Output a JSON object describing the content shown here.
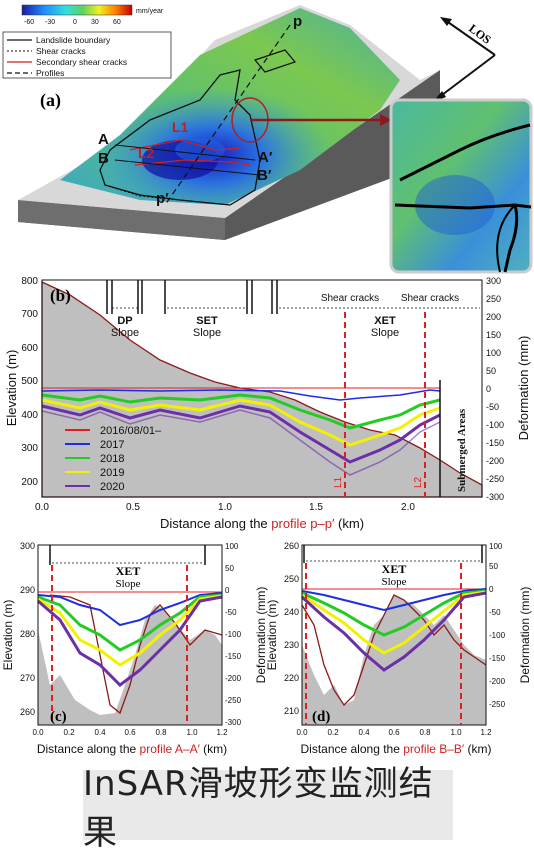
{
  "panel_a": {
    "label": "(a)",
    "colorbar": {
      "ticks": [
        "-60",
        "-30",
        "0",
        "30",
        "60"
      ],
      "unit": "mm/year"
    },
    "legend": [
      {
        "label": "Landslide boundary",
        "style": "solid-black"
      },
      {
        "label": "Shear cracks",
        "style": "dotted-black"
      },
      {
        "label": "Secondary shear cracks",
        "style": "solid-red"
      },
      {
        "label": "Profiles",
        "style": "dashed-black"
      }
    ],
    "profile_labels": [
      "p",
      "A",
      "B",
      "A′",
      "B′",
      "p′"
    ],
    "crack_labels": [
      "L1",
      "L2"
    ],
    "los_label": "LOS"
  },
  "panel_b": {
    "label": "(b)",
    "ylabel_left": "Elevation (m)",
    "ylabel_right": "Deformation (mm)",
    "xlabel_prefix": "Distance along the ",
    "xlabel_profile": "profile p–p′",
    "xlabel_suffix": " (km)",
    "left_ticks": [
      "800",
      "700",
      "600",
      "500",
      "400",
      "300",
      "200"
    ],
    "right_ticks": [
      "300",
      "250",
      "200",
      "150",
      "100",
      "50",
      "0",
      "-50",
      "-100",
      "-150",
      "-200",
      "-250",
      "-300"
    ],
    "x_ticks": [
      "0.0",
      "0.5",
      "1.0",
      "1.5",
      "2.0"
    ],
    "zones": [
      {
        "name": "DP",
        "sub": "Slope"
      },
      {
        "name": "SET",
        "sub": "Slope"
      },
      {
        "name": "XET",
        "sub": "Slope"
      }
    ],
    "shear_labels": [
      "Shear cracks",
      "Shear cracks"
    ],
    "line_labels": [
      "L1",
      "L2"
    ],
    "submerged": "Submerged Areas",
    "legend": [
      {
        "label": "2016/08/01–",
        "color": "#e02020"
      },
      {
        "label": "2017",
        "color": "#1a2ee6"
      },
      {
        "label": "2018",
        "color": "#22cc22"
      },
      {
        "label": "2019",
        "color": "#f2f200"
      },
      {
        "label": "2020",
        "color": "#6b2fa8"
      }
    ]
  },
  "panel_c": {
    "label": "(c)",
    "zone": "XET",
    "zone_sub": "Slope",
    "ylabel_left": "Elevation (m)",
    "ylabel_right": "Deformation (mm)",
    "left_ticks": [
      "300",
      "290",
      "280",
      "270",
      "260"
    ],
    "right_ticks": [
      "100",
      "50",
      "0",
      "-50",
      "-100",
      "-150",
      "-200",
      "-250",
      "-300"
    ],
    "x_ticks": [
      "0.0",
      "0.2",
      "0.4",
      "0.6",
      "0.8",
      "1.0",
      "1.2"
    ],
    "xlabel_prefix": "Distance along the ",
    "xlabel_profile": "profile A–A′",
    "xlabel_suffix": " (km)"
  },
  "panel_d": {
    "label": "(d)",
    "zone": "XET",
    "zone_sub": "Slope",
    "ylabel_left": "Elevation (m)",
    "ylabel_right": "Deformation (mm)",
    "left_ticks": [
      "260",
      "250",
      "240",
      "230",
      "220",
      "210"
    ],
    "right_ticks": [
      "100",
      "50",
      "0",
      "-50",
      "-100",
      "-150",
      "-200",
      "-250"
    ],
    "x_ticks": [
      "0.0",
      "0.2",
      "0.4",
      "0.6",
      "0.8",
      "1.0",
      "1.2"
    ],
    "xlabel_prefix": "Distance along the ",
    "xlabel_profile": "profile B–B′",
    "xlabel_suffix": " (km)"
  },
  "caption": "InSAR滑坡形变监测结果"
}
